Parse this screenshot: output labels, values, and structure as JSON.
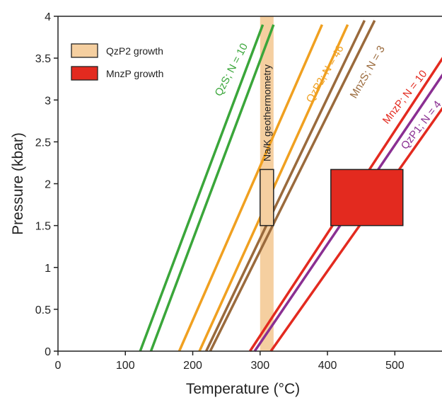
{
  "chart_data": {
    "type": "line",
    "xlabel": "Temperature (°C)",
    "ylabel": "Pressure (kbar)",
    "xlim": [
      0,
      570
    ],
    "ylim": [
      0,
      4
    ],
    "xticks": [
      0,
      100,
      200,
      300,
      400,
      500
    ],
    "yticks": [
      0,
      0.5,
      1,
      1.5,
      2,
      2.5,
      3,
      3.5,
      4
    ],
    "colors": {
      "green": "#3aa63a",
      "orange": "#f0a020",
      "brown": "#9a6a3c",
      "red": "#e32a1f",
      "purple": "#8a2f92",
      "band": "#f5cfa0"
    },
    "series": [
      {
        "name": "QzS; N = 10",
        "color": "green",
        "lines": [
          [
            122,
            0,
            304,
            3.9
          ],
          [
            138,
            0,
            320,
            3.9
          ]
        ]
      },
      {
        "name": "QzP2; N = 46",
        "color": "orange",
        "lines": [
          [
            180,
            0,
            392,
            3.9
          ],
          [
            210,
            0,
            430,
            3.9
          ]
        ]
      },
      {
        "name": "MnzS; N = 3",
        "color": "brown",
        "lines": [
          [
            220,
            0,
            455,
            3.95
          ],
          [
            226,
            0,
            470,
            3.95
          ]
        ]
      },
      {
        "name": "MnzP; N = 10",
        "color": "red",
        "lines": [
          [
            285,
            0,
            575,
            3.55
          ],
          [
            316,
            0,
            575,
            2.95
          ]
        ]
      },
      {
        "name": "QzP1; N = 4",
        "color": "purple",
        "lines": [
          [
            292,
            0,
            575,
            3.35
          ]
        ]
      }
    ],
    "band": {
      "xmin": 300,
      "xmax": 320,
      "label": "Na/K geothermometry"
    },
    "boxes": [
      {
        "name": "QzP2 growth",
        "xmin": 300,
        "xmax": 320,
        "ymin": 1.5,
        "ymax": 2.17,
        "fill": "#f5cfa0"
      },
      {
        "name": "MnzP growth",
        "xmin": 405,
        "xmax": 512,
        "ymin": 1.5,
        "ymax": 2.17,
        "fill": "#e32a1f"
      }
    ],
    "legend": [
      {
        "label": "QzP2 growth",
        "fill": "#f5cfa0"
      },
      {
        "label": "MnzP growth",
        "fill": "#e32a1f"
      }
    ],
    "legend_position": "top-left",
    "grid": false
  }
}
